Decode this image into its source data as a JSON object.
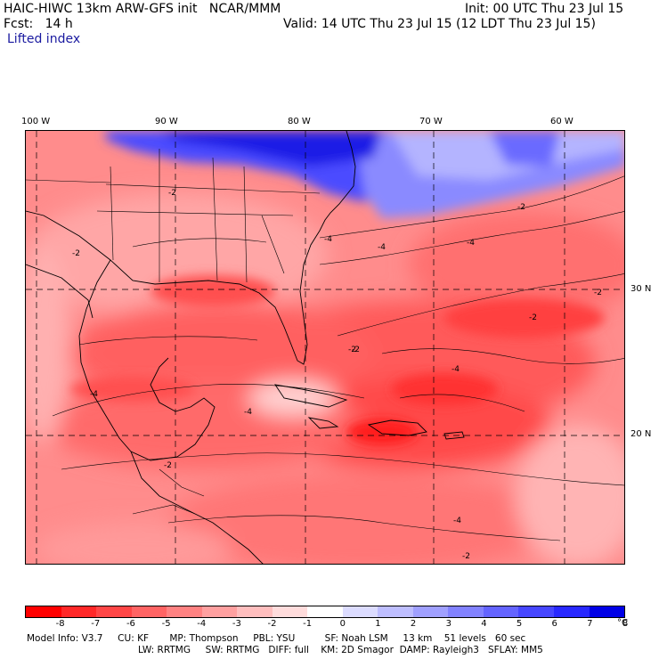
{
  "header": {
    "line1_left": "HAIC-HIWC 13km ARW-GFS init   NCAR/MMM",
    "line1_right": "Init: 00 UTC Thu 23 Jul 15",
    "line2_left": "Fcst:   14 h",
    "line2_right": "Valid: 14 UTC Thu 23 Jul 15 (12 LDT Thu 23 Jul 15)",
    "field_name": "Lifted index"
  },
  "axes": {
    "lon_labels": [
      "100 W",
      "90 W",
      "80 W",
      "70 W",
      "60 W"
    ],
    "lat_labels": [
      "30 N",
      "20 N"
    ]
  },
  "map": {
    "contour_labels": [
      "-2",
      "-4",
      "-2",
      "-4",
      "-2",
      "-4",
      "-2",
      "-2",
      "-4",
      "-4",
      "-2",
      "-4",
      "-2",
      "-4",
      "-2",
      "-2"
    ]
  },
  "legend": {
    "ticks": [
      "-8",
      "-7",
      "-6",
      "-5",
      "-4",
      "-3",
      "-2",
      "-1",
      "0",
      "1",
      "2",
      "3",
      "4",
      "5",
      "6",
      "7",
      "8"
    ],
    "unit": "°C",
    "colors": [
      "#ff0000",
      "#ff2828",
      "#ff4646",
      "#ff6464",
      "#ff8282",
      "#ffa0a0",
      "#ffbebe",
      "#ffdcdc",
      "#ffffff",
      "#dcdcff",
      "#bebeff",
      "#a0a0ff",
      "#8282ff",
      "#6464ff",
      "#4646ff",
      "#2828ff",
      "#0000e6"
    ]
  },
  "model_info": {
    "line1": "Model Info: V3.7     CU: KF       MP: Thompson     PBL: YSU          SF: Noah LSM     13 km    51 levels   60 sec",
    "line2": "LW: RRTMG     SW: RRTMG   DIFF: full    KM: 2D Smagor  DAMP: Rayleigh3   SFLAY: MM5"
  }
}
